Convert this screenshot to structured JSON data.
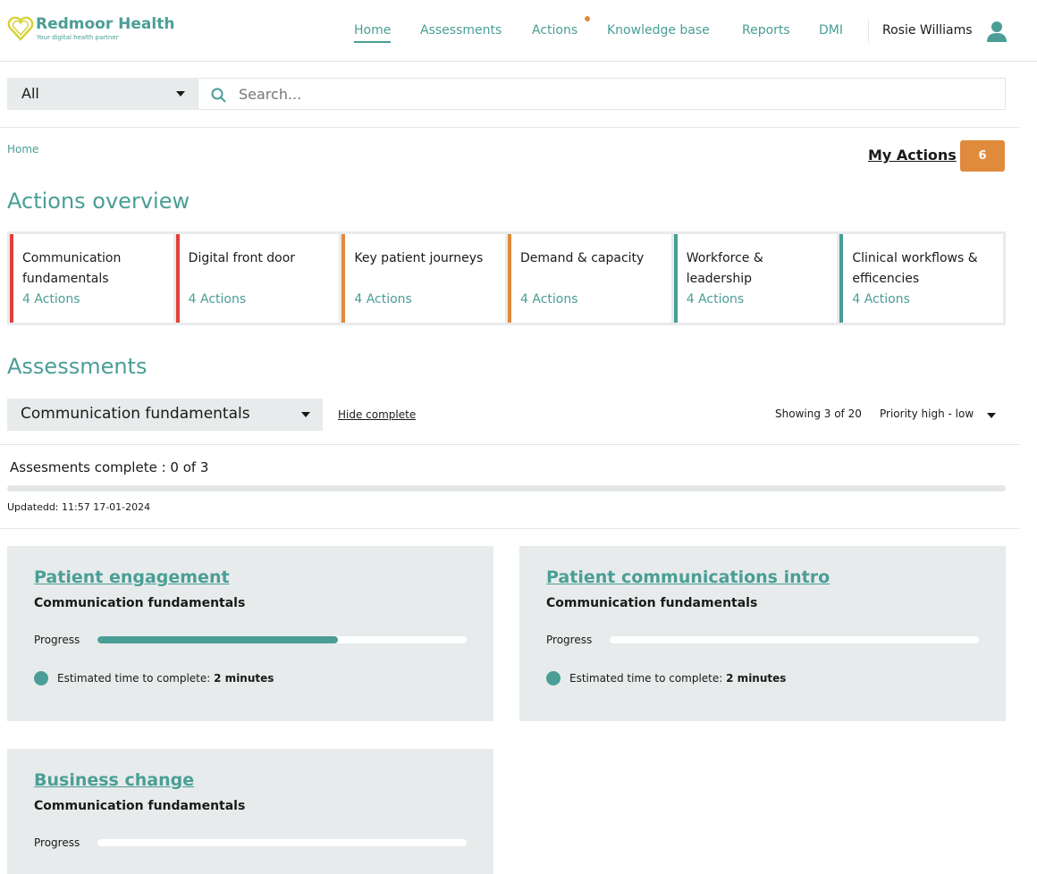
{
  "header": {
    "brand": "Redmoor Health",
    "tagline": "Your digital health partner",
    "nav": [
      "Home",
      "Assessments",
      "Actions",
      "Knowledge base",
      "Reports",
      "DMI"
    ],
    "user": "Rosie Williams"
  },
  "search": {
    "filter": "All",
    "placeholder": "Search..."
  },
  "breadcrumb": "Home",
  "my_actions": {
    "label": "My Actions",
    "count": "6"
  },
  "overview": {
    "title": "Actions overview",
    "cards": [
      {
        "title": "Communication fundamentals",
        "count": "4 Actions",
        "color": "#e0413a"
      },
      {
        "title": "Digital front door",
        "count": "4 Actions",
        "color": "#e0413a"
      },
      {
        "title": "Key patient journeys",
        "count": "4 Actions",
        "color": "#e08a3c"
      },
      {
        "title": "Demand & capacity",
        "count": "4 Actions",
        "color": "#e08a3c"
      },
      {
        "title": "Workforce & leadership",
        "count": "4 Actions",
        "color": "#4a9e96"
      },
      {
        "title": "Clinical workflows & efficencies",
        "count": "4 Actions",
        "color": "#4a9e96"
      }
    ]
  },
  "assessments": {
    "title": "Assessments",
    "category": "Communication fundamentals",
    "hide_complete": "Hide complete",
    "showing": "Showing 3 of 20",
    "sort": "Priority high - low",
    "complete": "Assesments complete : 0 of 3",
    "complete_fraction": 0,
    "updated": "Updatedd: 11:57 17-01-2024",
    "progress_label": "Progress",
    "est_label": "Estimated time to complete:",
    "items": [
      {
        "title": "Patient engagement",
        "subtitle": "Communication fundamentals",
        "progress": 0.65,
        "time": "2 minutes"
      },
      {
        "title": "Patient communications intro",
        "subtitle": "Communication fundamentals",
        "progress": 0,
        "time": "2 minutes"
      },
      {
        "title": "Business change",
        "subtitle": "Communication fundamentals",
        "progress": 0
      }
    ]
  }
}
